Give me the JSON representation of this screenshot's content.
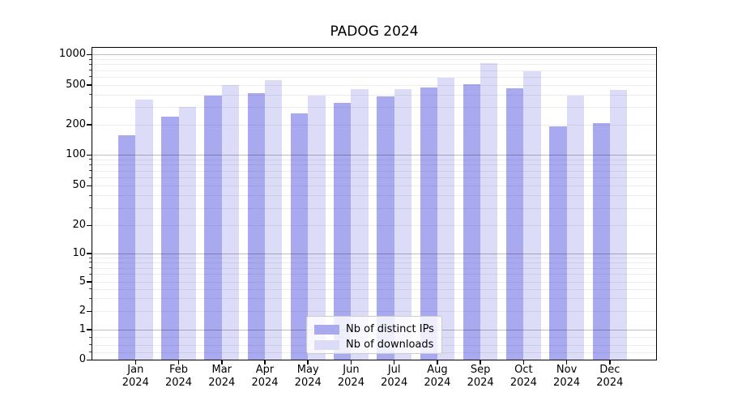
{
  "chart_data": {
    "type": "bar",
    "title": "PADOG 2024",
    "xlabel": "",
    "ylabel": "",
    "yscale": "symlog (log above 1, linear 0-1)",
    "ylim": [
      0,
      1150
    ],
    "grid": true,
    "legend_position": "lower center",
    "categories": [
      {
        "month": "Jan",
        "year": "2024"
      },
      {
        "month": "Feb",
        "year": "2024"
      },
      {
        "month": "Mar",
        "year": "2024"
      },
      {
        "month": "Apr",
        "year": "2024"
      },
      {
        "month": "May",
        "year": "2024"
      },
      {
        "month": "Jun",
        "year": "2024"
      },
      {
        "month": "Jul",
        "year": "2024"
      },
      {
        "month": "Aug",
        "year": "2024"
      },
      {
        "month": "Sep",
        "year": "2024"
      },
      {
        "month": "Oct",
        "year": "2024"
      },
      {
        "month": "Nov",
        "year": "2024"
      },
      {
        "month": "Dec",
        "year": "2024"
      }
    ],
    "y_ticks": [
      {
        "value": 0,
        "label": "0"
      },
      {
        "value": 1,
        "label": "1"
      },
      {
        "value": 2,
        "label": "2"
      },
      {
        "value": 5,
        "label": "5"
      },
      {
        "value": 10,
        "label": "10"
      },
      {
        "value": 20,
        "label": "20"
      },
      {
        "value": 50,
        "label": "50"
      },
      {
        "value": 100,
        "label": "100"
      },
      {
        "value": 200,
        "label": "200"
      },
      {
        "value": 500,
        "label": "500"
      },
      {
        "value": 1000,
        "label": "1000"
      }
    ],
    "series": [
      {
        "name": "Nb of distinct IPs",
        "key": "distinct-ips",
        "color": "#a9a9f0",
        "values": [
          155,
          240,
          390,
          410,
          260,
          330,
          380,
          470,
          505,
          460,
          190,
          205
        ]
      },
      {
        "name": "Nb of downloads",
        "key": "downloads",
        "color": "#dcdcf8",
        "values": [
          355,
          300,
          500,
          560,
          390,
          450,
          455,
          590,
          820,
          685,
          390,
          445
        ]
      }
    ]
  },
  "colors": {
    "background": "#ffffff",
    "axis": "#000000",
    "major_gridline": "#bcbcbc",
    "minor_gridline": "#ececec",
    "legend_border": "#cccccc"
  }
}
